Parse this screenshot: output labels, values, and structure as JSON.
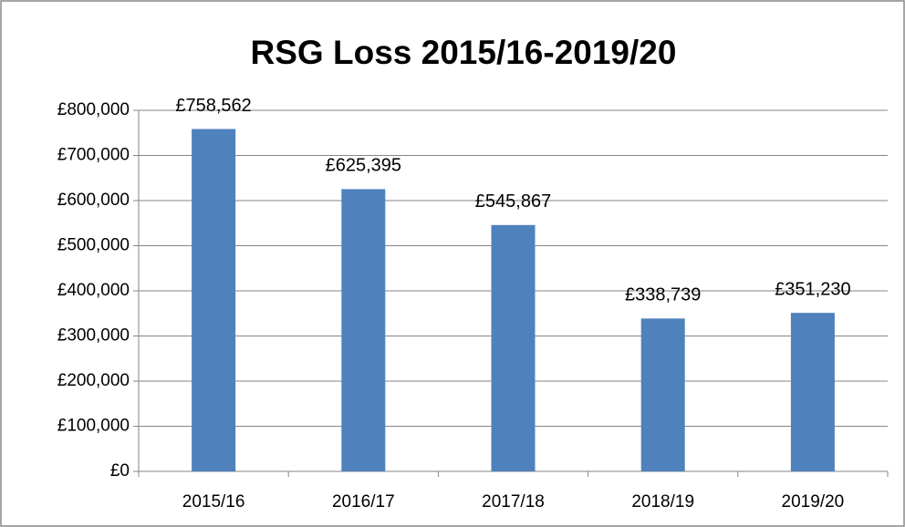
{
  "chart_data": {
    "type": "bar",
    "title": "RSG Loss 2015/16-2019/20",
    "categories": [
      "2015/16",
      "2016/17",
      "2017/18",
      "2018/19",
      "2019/20"
    ],
    "values": [
      758562,
      625395,
      545867,
      338739,
      351230
    ],
    "value_labels": [
      "£758,562",
      "£625,395",
      "£545,867",
      "£338,739",
      "£351,230"
    ],
    "color": "#4f81bd",
    "ylim": [
      0,
      800000
    ],
    "yticks": [
      {
        "value": 0,
        "label": "£0"
      },
      {
        "value": 100000,
        "label": "£100,000"
      },
      {
        "value": 200000,
        "label": "£200,000"
      },
      {
        "value": 300000,
        "label": "£300,000"
      },
      {
        "value": 400000,
        "label": "£400,000"
      },
      {
        "value": 500000,
        "label": "£500,000"
      },
      {
        "value": 600000,
        "label": "£600,000"
      },
      {
        "value": 700000,
        "label": "£700,000"
      },
      {
        "value": 800000,
        "label": "£800,000"
      }
    ],
    "grid": true
  }
}
